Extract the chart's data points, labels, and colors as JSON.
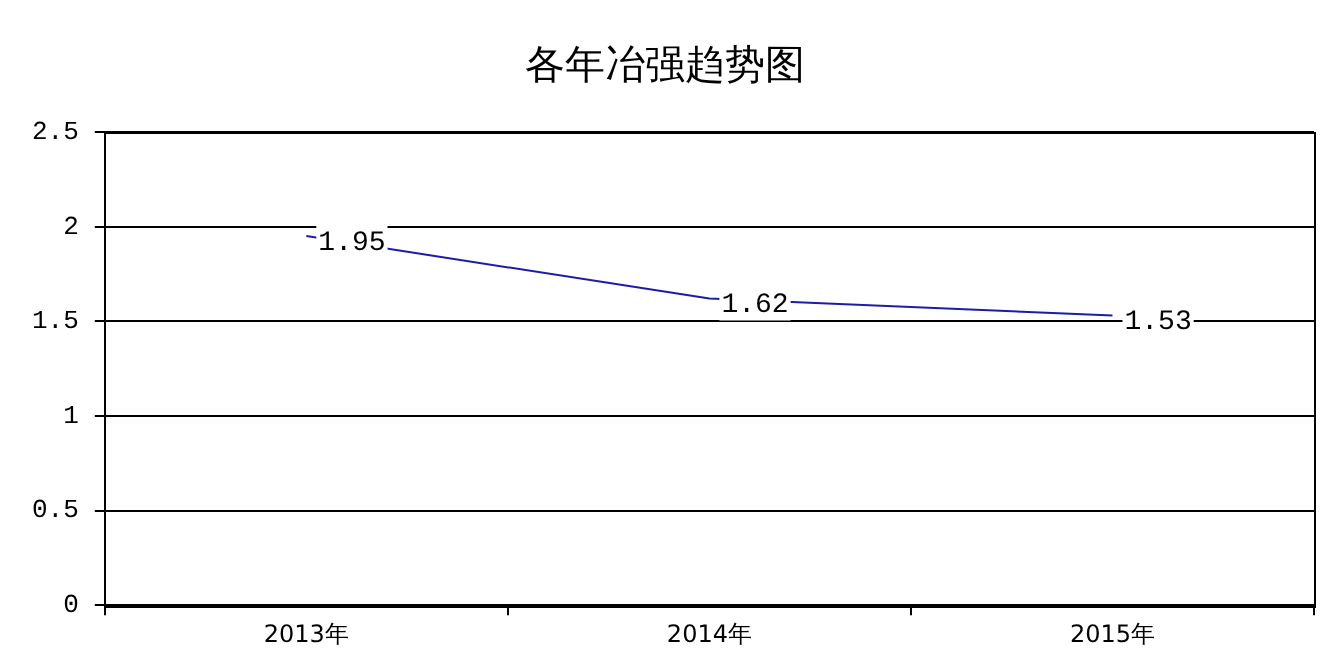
{
  "chart_data": {
    "type": "line",
    "title": "各年冶强趋势图",
    "categories": [
      "2013年",
      "2014年",
      "2015年"
    ],
    "series": [
      {
        "color": "#1c1ca8",
        "values": [
          1.95,
          1.62,
          1.53
        ]
      }
    ],
    "ylim": [
      0,
      2.5
    ],
    "yticks": [
      0,
      0.5,
      1,
      1.5,
      2,
      2.5
    ],
    "grid": "y",
    "legend": false,
    "marker": "none",
    "line_style": "solid",
    "data_labels": true
  }
}
